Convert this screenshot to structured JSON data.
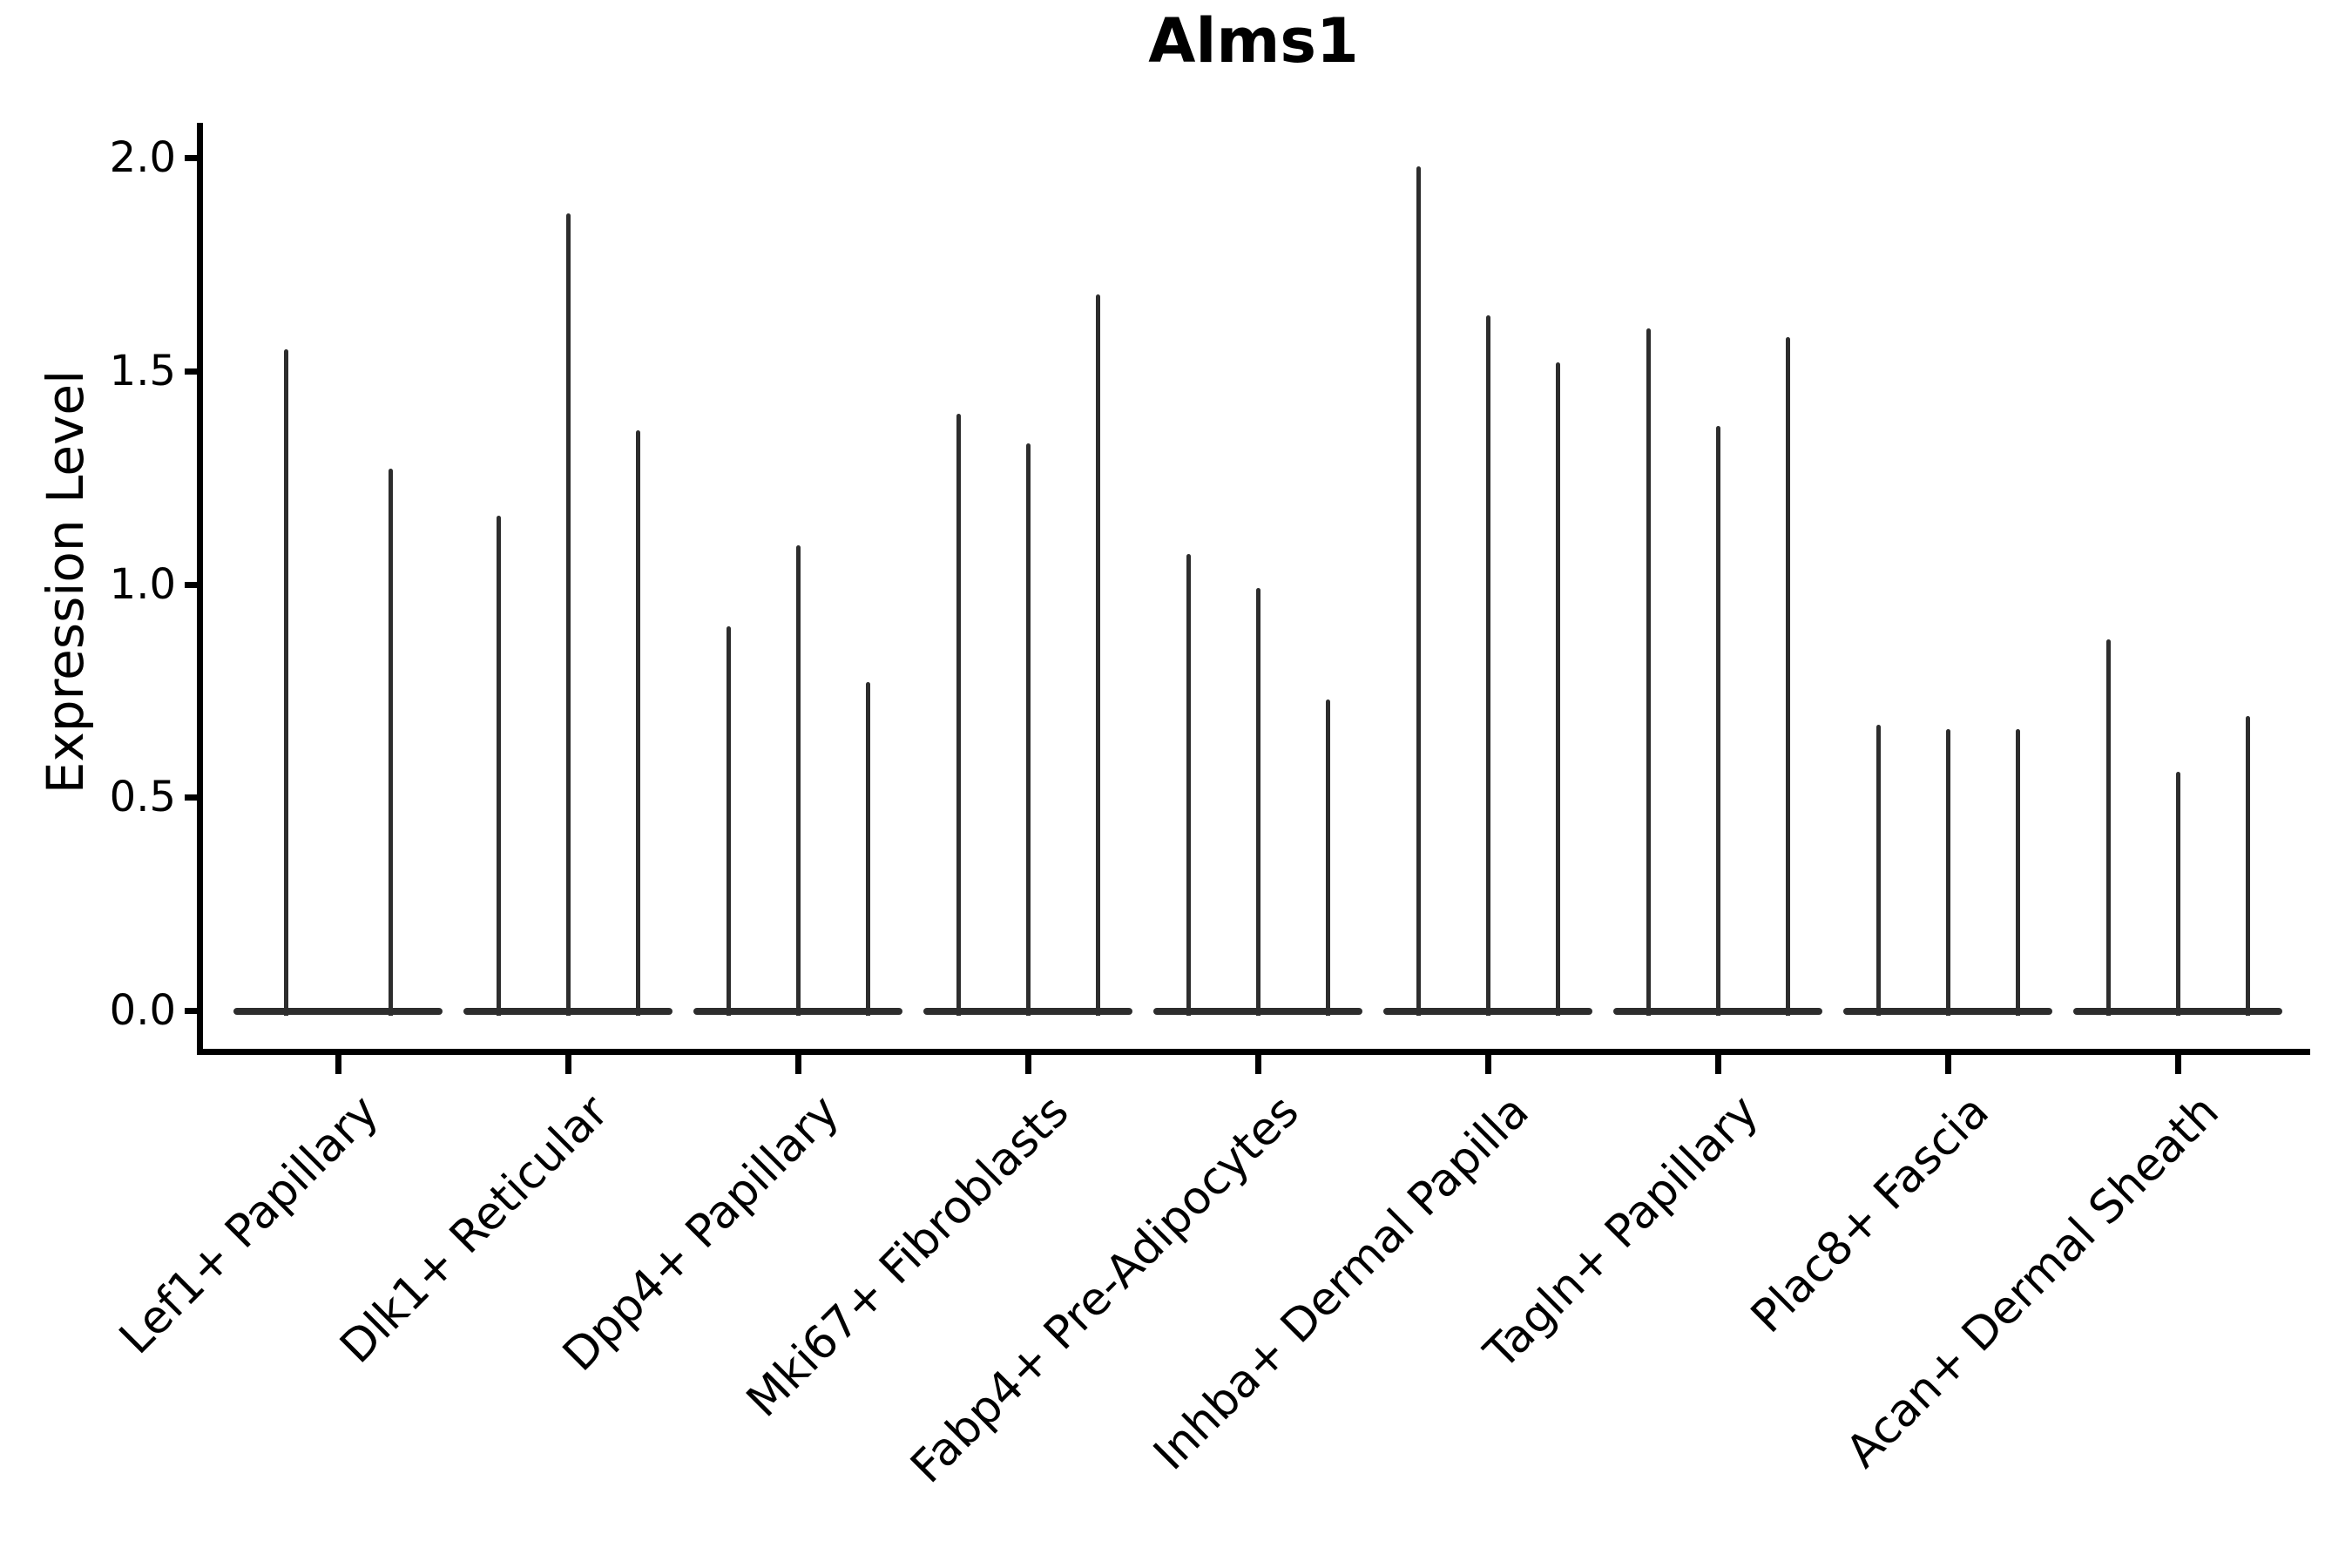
{
  "title": "Alms1",
  "y_axis": {
    "label": "Expression Level",
    "tick_labels": [
      "0.0",
      "0.5",
      "1.0",
      "1.5",
      "2.0"
    ],
    "tick_values": [
      0.0,
      0.5,
      1.0,
      1.5,
      2.0
    ]
  },
  "x_axis": {
    "categories": [
      "Lef1+ Papillary",
      "Dlk1+ Reticular",
      "Dpp4+ Papillary",
      "Mki67+ Fibroblasts",
      "Fabp4+ Pre-Adipocytes",
      "Inhba+ Dermal Papilla",
      "Tagln+ Papillary",
      "Plac8+ Fascia",
      "Acan+ Dermal Sheath"
    ]
  },
  "chart_data": {
    "type": "violin",
    "title": "Alms1",
    "xlabel": "",
    "ylabel": "Expression Level",
    "ylim": [
      0.0,
      2.08
    ],
    "yticks": [
      0.0,
      0.5,
      1.0,
      1.5,
      2.0
    ],
    "grid": false,
    "legend_position": "none",
    "orientation": "vertical",
    "categories": [
      "Lef1+ Papillary",
      "Dlk1+ Reticular",
      "Dpp4+ Papillary",
      "Mki67+ Fibroblasts",
      "Fabp4+ Pre-Adipocytes",
      "Inhba+ Dermal Papilla",
      "Tagln+ Papillary",
      "Plac8+ Fascia",
      "Acan+ Dermal Sheath"
    ],
    "groups": [
      {
        "category": "Lef1+ Papillary",
        "violin_max_values": [
          1.55,
          1.27
        ]
      },
      {
        "category": "Dlk1+ Reticular",
        "violin_max_values": [
          1.16,
          1.87,
          1.36
        ]
      },
      {
        "category": "Dpp4+ Papillary",
        "violin_max_values": [
          0.9,
          1.09,
          0.77
        ]
      },
      {
        "category": "Mki67+ Fibroblasts",
        "violin_max_values": [
          1.4,
          1.33,
          1.68
        ]
      },
      {
        "category": "Fabp4+ Pre-Adipocytes",
        "violin_max_values": [
          1.07,
          0.99,
          0.73
        ]
      },
      {
        "category": "Inhba+ Dermal Papilla",
        "violin_max_values": [
          1.98,
          1.63,
          1.52
        ]
      },
      {
        "category": "Tagln+ Papillary",
        "violin_max_values": [
          1.6,
          1.37,
          1.58
        ]
      },
      {
        "category": "Plac8+ Fascia",
        "violin_max_values": [
          0.67,
          0.66,
          0.66
        ]
      },
      {
        "category": "Acan+ Dermal Sheath",
        "violin_max_values": [
          0.87,
          0.56,
          0.69
        ]
      }
    ],
    "colors": {
      "violin": "#2d2d2d",
      "axis": "#000000",
      "text": "#000000",
      "background": "#ffffff"
    }
  }
}
